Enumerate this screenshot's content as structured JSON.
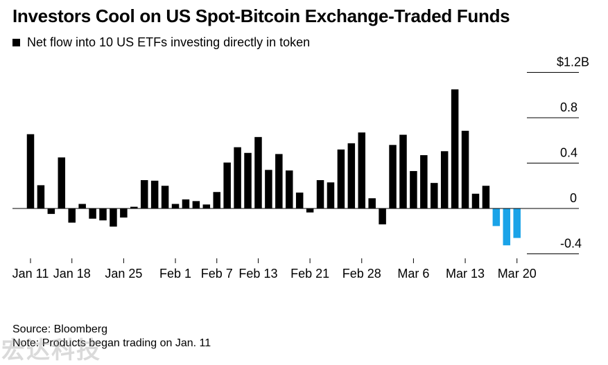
{
  "chart_data": {
    "type": "bar",
    "title": "Investors Cool on US Spot-Bitcoin Exchange-Traded Funds",
    "legend": [
      {
        "name": "Net flow into 10 US ETFs investing directly in token",
        "color": "#000000"
      }
    ],
    "legend_placement": "top-left",
    "ylim": [
      -0.4,
      1.2
    ],
    "y_axis_side": "right",
    "yticks": [
      {
        "value": 1.2,
        "label": "$1.2B"
      },
      {
        "value": 0.8,
        "label": "0.8"
      },
      {
        "value": 0.4,
        "label": "0.4"
      },
      {
        "value": 0,
        "label": "0"
      },
      {
        "value": -0.4,
        "label": "-0.4"
      }
    ],
    "xticks": [
      {
        "index": 0,
        "label": "Jan 11"
      },
      {
        "index": 4,
        "label": "Jan 18"
      },
      {
        "index": 9,
        "label": "Jan 25"
      },
      {
        "index": 14,
        "label": "Feb 1"
      },
      {
        "index": 18,
        "label": "Feb 7"
      },
      {
        "index": 22,
        "label": "Feb 13"
      },
      {
        "index": 27,
        "label": "Feb 21"
      },
      {
        "index": 32,
        "label": "Feb 28"
      },
      {
        "index": 37,
        "label": "Mar 6"
      },
      {
        "index": 42,
        "label": "Mar 13"
      },
      {
        "index": 47,
        "label": "Mar 20"
      }
    ],
    "values": [
      0.655,
      0.205,
      -0.048,
      0.45,
      -0.125,
      0.04,
      -0.09,
      -0.105,
      -0.16,
      -0.08,
      0.015,
      0.25,
      0.245,
      0.2,
      0.04,
      0.08,
      0.065,
      0.035,
      0.145,
      0.405,
      0.54,
      0.49,
      0.63,
      0.34,
      0.48,
      0.335,
      0.14,
      -0.035,
      0.25,
      0.23,
      0.52,
      0.575,
      0.67,
      0.09,
      -0.14,
      0.56,
      0.65,
      0.33,
      0.47,
      0.225,
      0.505,
      1.05,
      0.685,
      0.13,
      0.2,
      -0.155,
      -0.325,
      -0.26
    ],
    "colors": {
      "positive": "#000000",
      "negative_recent": "#1aa3e8",
      "gridline": "#bdbdbd",
      "zero_line": "#000000"
    },
    "grid": true
  },
  "footer": {
    "source": "Source: Bloomberg",
    "note": "Note: Products began trading on Jan. 11"
  }
}
